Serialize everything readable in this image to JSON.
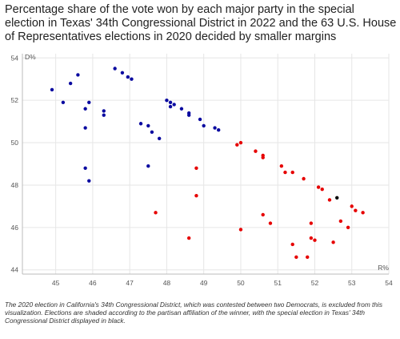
{
  "title": "Percentage share of the vote won by each major party in the special election in Texas' 34th Congressional District in 2022 and the 63 U.S. House of Representatives elections in 2020 decided by smaller margins",
  "caption": "The 2020 election in California's 34th Congressional District, which was contested between two Democrats, is excluded from this visualization. Elections are shaded according to the partisan affiliation of the winner, with the special election in Texas' 34th Congressional District displayed in black.",
  "colors": {
    "democrat": "#0a0aa0",
    "republican": "#e60000",
    "special": "#000000",
    "grid": "#e6e6e6",
    "axis": "#bbbbbb"
  },
  "chart_data": {
    "type": "scatter",
    "title": "Percentage share of the vote won by each major party in the special election in Texas' 34th Congressional District in 2022 and the 63 U.S. House of Representatives elections in 2020 decided by smaller margins",
    "xlabel": "R%",
    "ylabel": "D%",
    "xlim": [
      44.1,
      54.0
    ],
    "ylim": [
      43.8,
      54.2
    ],
    "x_ticks": [
      "45",
      "46",
      "47",
      "48",
      "49",
      "50",
      "51",
      "52",
      "53",
      "54"
    ],
    "y_ticks": [
      "44",
      "46",
      "48",
      "50",
      "52",
      "54"
    ],
    "grid": true,
    "series": [
      {
        "color": "democrat",
        "points": [
          [
            44.9,
            52.5
          ],
          [
            45.2,
            51.9
          ],
          [
            45.4,
            52.8
          ],
          [
            45.6,
            53.2
          ],
          [
            45.8,
            51.6
          ],
          [
            45.9,
            51.9
          ],
          [
            45.8,
            50.7
          ],
          [
            45.8,
            48.8
          ],
          [
            45.9,
            48.2
          ],
          [
            46.3,
            51.5
          ],
          [
            46.3,
            51.3
          ],
          [
            46.6,
            53.5
          ],
          [
            46.8,
            53.3
          ],
          [
            46.95,
            53.1
          ],
          [
            47.05,
            53.0
          ],
          [
            47.3,
            50.9
          ],
          [
            47.5,
            50.8
          ],
          [
            47.6,
            50.5
          ],
          [
            47.5,
            48.9
          ],
          [
            47.8,
            50.2
          ],
          [
            48.0,
            52.0
          ],
          [
            48.1,
            51.9
          ],
          [
            48.2,
            51.8
          ],
          [
            48.1,
            51.7
          ],
          [
            48.4,
            51.6
          ],
          [
            48.6,
            51.4
          ],
          [
            48.6,
            51.3
          ],
          [
            48.9,
            51.1
          ],
          [
            49.0,
            50.8
          ],
          [
            49.3,
            50.7
          ],
          [
            49.4,
            50.6
          ]
        ]
      },
      {
        "color": "republican",
        "points": [
          [
            49.9,
            49.9
          ],
          [
            50.0,
            50.0
          ],
          [
            50.4,
            49.6
          ],
          [
            50.6,
            49.4
          ],
          [
            50.6,
            49.3
          ],
          [
            51.1,
            48.9
          ],
          [
            51.2,
            48.6
          ],
          [
            51.4,
            48.6
          ],
          [
            51.7,
            48.3
          ],
          [
            52.1,
            47.9
          ],
          [
            52.2,
            47.8
          ],
          [
            52.4,
            47.3
          ],
          [
            53.0,
            47.0
          ],
          [
            53.1,
            46.8
          ],
          [
            53.3,
            46.7
          ],
          [
            52.7,
            46.3
          ],
          [
            52.9,
            46.0
          ],
          [
            51.9,
            46.2
          ],
          [
            51.9,
            45.5
          ],
          [
            52.0,
            45.4
          ],
          [
            52.5,
            45.3
          ],
          [
            51.4,
            45.2
          ],
          [
            51.5,
            44.6
          ],
          [
            51.8,
            44.6
          ],
          [
            50.6,
            46.6
          ],
          [
            50.8,
            46.2
          ],
          [
            50.0,
            45.9
          ],
          [
            48.8,
            48.8
          ],
          [
            48.8,
            47.5
          ],
          [
            47.7,
            46.7
          ],
          [
            48.6,
            45.5
          ]
        ]
      },
      {
        "color": "special",
        "points": [
          [
            52.6,
            47.4
          ]
        ]
      }
    ]
  }
}
